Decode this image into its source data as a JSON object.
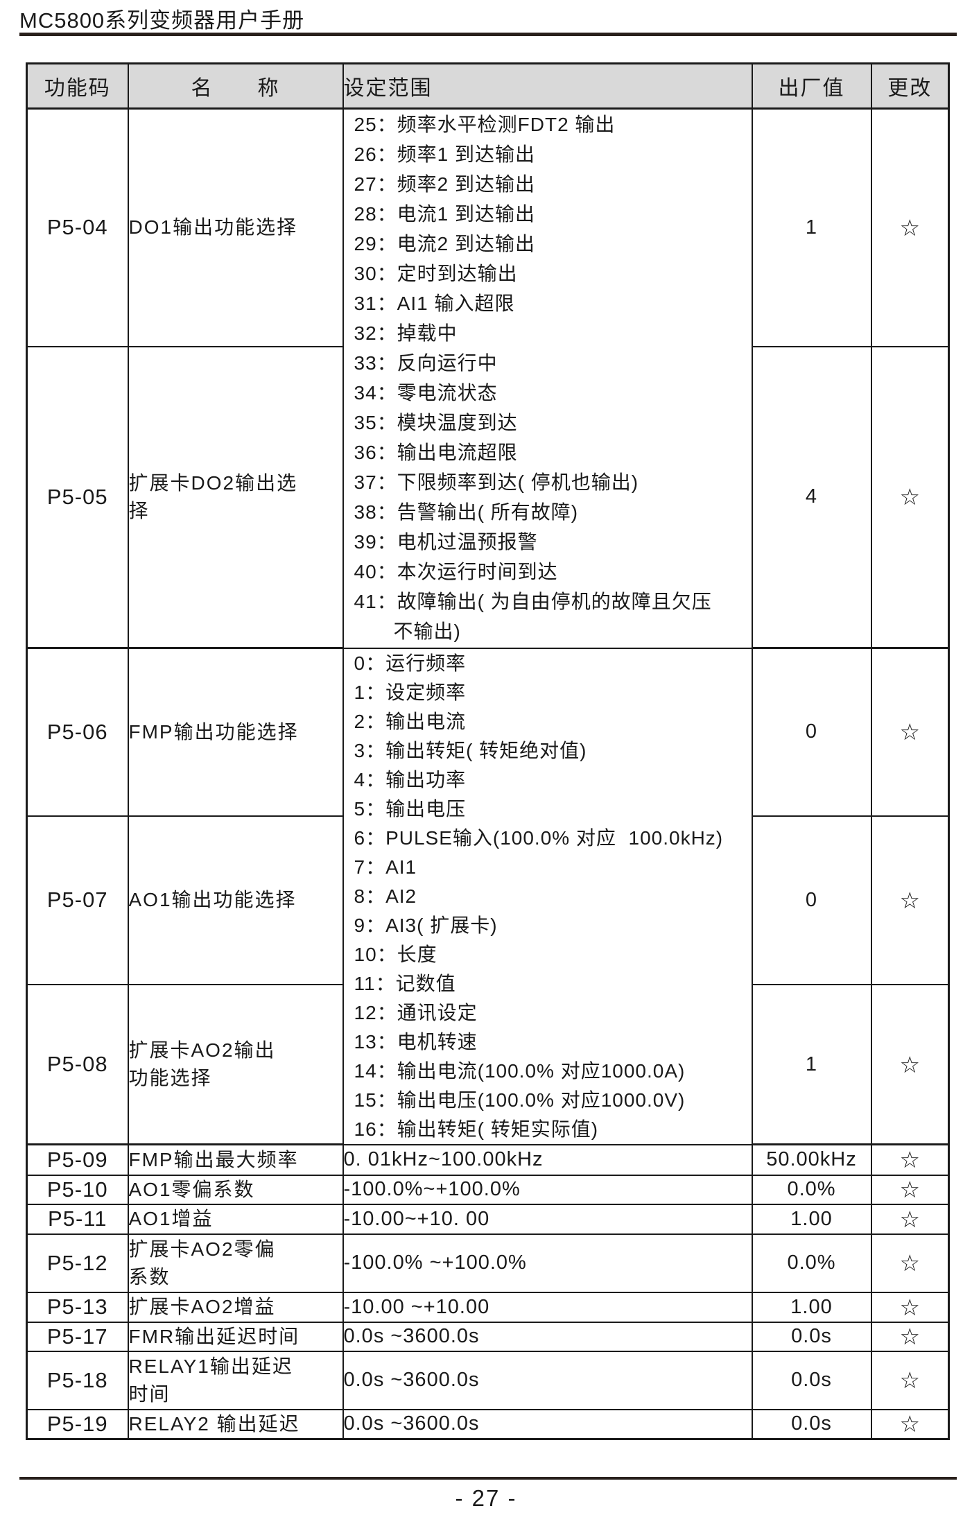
{
  "page": {
    "title": "MC5800系列变频器用户手册",
    "page_number": "- 27 -"
  },
  "colors": {
    "header_bg": "#d9d9d9",
    "rule": "#29201c",
    "text": "#1a1a1a",
    "border": "#1a1a1a"
  },
  "table": {
    "headers": {
      "code": "功能码",
      "name": "名　　称",
      "range": "设定范围",
      "default": "出厂值",
      "modify": "更改"
    },
    "range_groups": [
      {
        "items": [
          "25：频率水平检测FDT2 输出",
          "26：频率1 到达输出",
          "27：频率2 到达输出",
          "28：电流1 到达输出",
          "29：电流2 到达输出",
          "30：定时到达输出",
          "31：AI1 输入超限",
          "32：掉载中",
          "33：反向运行中",
          "34：零电流状态",
          "35：模块温度到达",
          "36：输出电流超限",
          "37：下限频率到达( 停机也输出)",
          "38：告警输出( 所有故障)",
          "39：电机过温预报警",
          "40：本次运行时间到达",
          "41：故障输出( 为自由停机的故障且欠压\n不输出)"
        ]
      },
      {
        "items": [
          "0：运行频率",
          "1：设定频率",
          "2：输出电流",
          "3：输出转矩( 转矩绝对值)",
          "4：输出功率",
          "5：输出电压",
          "6：PULSE输入(100.0% 对应  100.0kHz)",
          "7：AI1",
          "8：AI2",
          "9：AI3( 扩展卡)",
          "10：长度",
          "11：记数值",
          "12：通讯设定",
          "13：电机转速",
          "14：输出电流(100.0% 对应1000.0A)",
          "15：输出电压(100.0% 对应1000.0V)",
          "16：输出转矩( 转矩实际值)"
        ]
      }
    ],
    "rows": [
      {
        "code": "P5-04",
        "name": "DO1输出功能选择",
        "default": "1",
        "modify": "☆"
      },
      {
        "code": "P5-05",
        "name": "扩展卡DO2输出选\n择",
        "default": "4",
        "modify": "☆"
      },
      {
        "code": "P5-06",
        "name": "FMP输出功能选择",
        "default": "0",
        "modify": "☆"
      },
      {
        "code": "P5-07",
        "name": "AO1输出功能选择",
        "default": "0",
        "modify": "☆"
      },
      {
        "code": "P5-08",
        "name": "扩展卡AO2输出\n功能选择",
        "default": "1",
        "modify": "☆"
      },
      {
        "code": "P5-09",
        "name": "FMP输出最大频率",
        "range": "0. 01kHz~100.00kHz",
        "default": "50.00kHz",
        "modify": "☆"
      },
      {
        "code": "P5-10",
        "name": "AO1零偏系数",
        "range": "-100.0%~+100.0%",
        "default": "0.0%",
        "modify": "☆"
      },
      {
        "code": "P5-11",
        "name": "AO1增益",
        "range": "-10.00~+10. 00",
        "default": "1.00",
        "modify": "☆"
      },
      {
        "code": "P5-12",
        "name": "扩展卡AO2零偏\n系数",
        "range": "-100.0% ~+100.0%",
        "default": "0.0%",
        "modify": "☆"
      },
      {
        "code": "P5-13",
        "name": "扩展卡AO2增益",
        "range": "-10.00 ~+10.00",
        "default": "1.00",
        "modify": "☆"
      },
      {
        "code": "P5-17",
        "name": "FMR输出延迟时间",
        "range": "0.0s ~3600.0s",
        "default": "0.0s",
        "modify": "☆"
      },
      {
        "code": "P5-18",
        "name": "RELAY1输出延迟\n时间",
        "range": "0.0s ~3600.0s",
        "default": "0.0s",
        "modify": "☆"
      },
      {
        "code": "P5-19",
        "name": "RELAY2 输出延迟",
        "range": "0.0s ~3600.0s",
        "default": "0.0s",
        "modify": "☆"
      }
    ]
  }
}
